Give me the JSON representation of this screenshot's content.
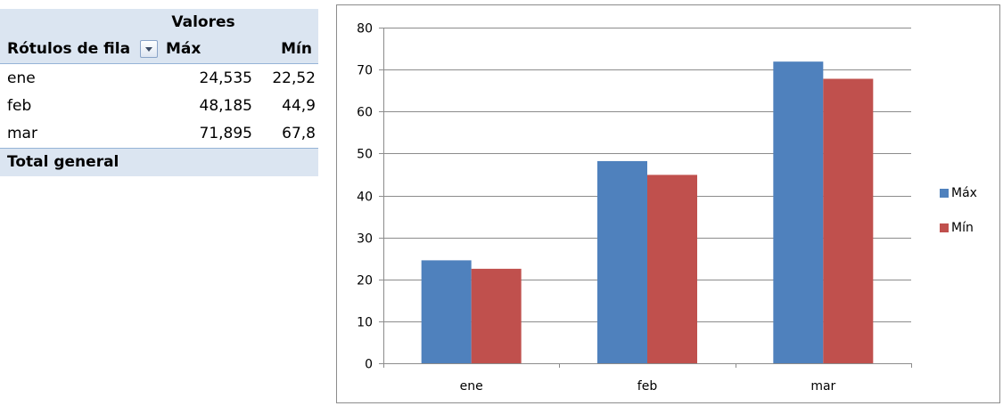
{
  "pivot": {
    "values_header": "Valores",
    "row_labels_header": "Rótulos de fila",
    "col_max": "Máx",
    "col_min": "Mín",
    "rows": [
      {
        "label": "ene",
        "max": "24,535",
        "min": "22,52"
      },
      {
        "label": "feb",
        "max": "48,185",
        "min": "44,9"
      },
      {
        "label": "mar",
        "max": "71,895",
        "min": "67,8"
      }
    ],
    "total_label": "Total general",
    "filter_icon": "dropdown-arrow-icon"
  },
  "chart_data": {
    "type": "bar",
    "categories": [
      "ene",
      "feb",
      "mar"
    ],
    "series": [
      {
        "name": "Máx",
        "values": [
          24.535,
          48.185,
          71.895
        ],
        "color": "#4f81bd"
      },
      {
        "name": "Mín",
        "values": [
          22.52,
          44.9,
          67.8
        ],
        "color": "#c0504d"
      }
    ],
    "ylim": [
      0,
      80
    ],
    "yticks": [
      "0",
      "10",
      "20",
      "30",
      "40",
      "50",
      "60",
      "70",
      "80"
    ],
    "grid": true,
    "legend": "right"
  }
}
